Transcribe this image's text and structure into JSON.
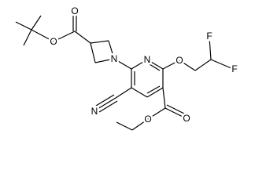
{
  "atoms": [
    {
      "label": "O"
    },
    {
      "label": "O"
    },
    {
      "label": "N"
    },
    {
      "label": "N"
    },
    {
      "label": "O"
    },
    {
      "label": "F"
    },
    {
      "label": "F"
    },
    {
      "label": "N"
    },
    {
      "label": "O"
    },
    {
      "label": "O"
    }
  ]
}
